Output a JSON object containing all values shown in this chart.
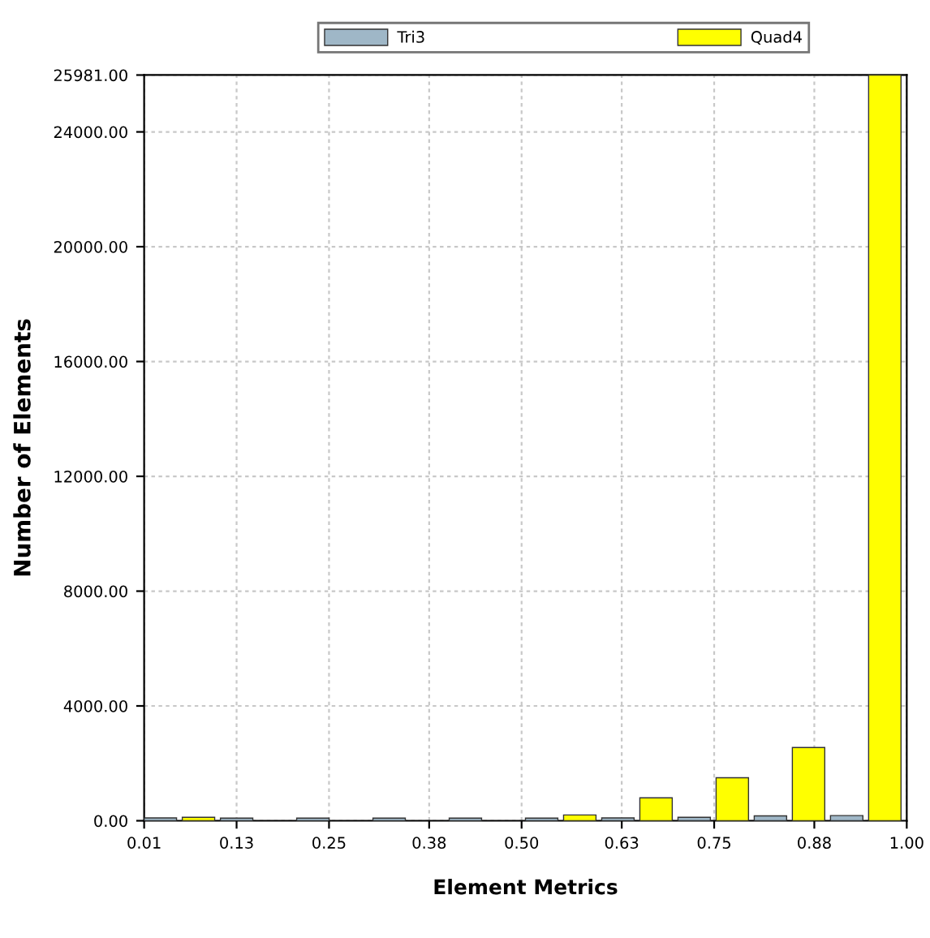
{
  "chart_data": {
    "type": "histogram",
    "xlabel": "Element Metrics",
    "ylabel": "Number of Elements",
    "bins": [
      0.01,
      0.109,
      0.208,
      0.307,
      0.406,
      0.505,
      0.604,
      0.703,
      0.802,
      0.901,
      1.0
    ],
    "series": [
      {
        "name": "Tri3",
        "color": "#9fb7c7",
        "values": [
          100,
          90,
          90,
          90,
          90,
          90,
          100,
          120,
          170,
          180
        ]
      },
      {
        "name": "Quad4",
        "color": "#ffff00",
        "values": [
          120,
          null,
          null,
          null,
          null,
          200,
          800,
          1500,
          2550,
          25981
        ]
      }
    ],
    "xlim": [
      0.01,
      1.0
    ],
    "xticks": [
      {
        "value": 0.01,
        "label": "0.01"
      },
      {
        "value": 0.13,
        "label": "0.13"
      },
      {
        "value": 0.25,
        "label": "0.25"
      },
      {
        "value": 0.38,
        "label": "0.38"
      },
      {
        "value": 0.5,
        "label": "0.50"
      },
      {
        "value": 0.63,
        "label": "0.63"
      },
      {
        "value": 0.75,
        "label": "0.75"
      },
      {
        "value": 0.88,
        "label": "0.88"
      },
      {
        "value": 1.0,
        "label": "1.00"
      }
    ],
    "ylim": [
      0,
      25981
    ],
    "yticks": [
      {
        "value": 0,
        "label": "0.00"
      },
      {
        "value": 4000,
        "label": "4000.00"
      },
      {
        "value": 8000,
        "label": "8000.00"
      },
      {
        "value": 12000,
        "label": "12000.00"
      },
      {
        "value": 16000,
        "label": "16000.00"
      },
      {
        "value": 20000,
        "label": "20000.00"
      },
      {
        "value": 24000,
        "label": "24000.00"
      },
      {
        "value": 25981,
        "label": "25981.00"
      }
    ],
    "grid": true,
    "legend": "top"
  }
}
